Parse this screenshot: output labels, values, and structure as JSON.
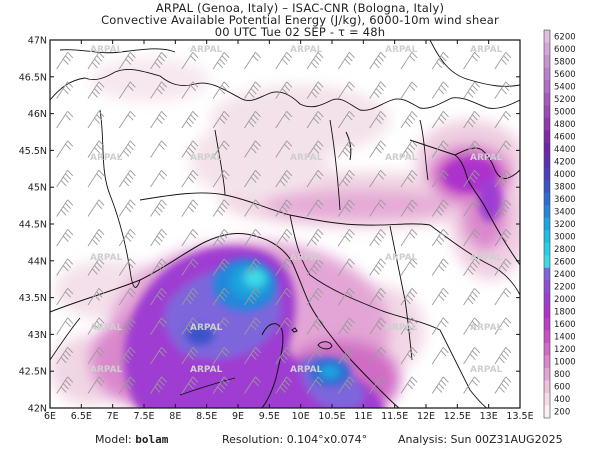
{
  "header": {
    "line1": "ARPAL (Genoa, Italy)  –  ISAC-CNR (Bologna, Italy)",
    "line2": "Convective Available Potential Energy (J/kg), 6000-10m wind shear",
    "line3": "00 UTC Tue 02 SEP  -  τ = 48h"
  },
  "axes": {
    "lat_labels": [
      "47N",
      "46.5N",
      "46N",
      "45.5N",
      "45N",
      "44.5N",
      "44N",
      "43.5N",
      "43N",
      "42.5N",
      "42N"
    ],
    "lon_labels": [
      "6E",
      "6.5E",
      "7E",
      "7.5E",
      "8E",
      "8.5E",
      "9E",
      "9.5E",
      "10E",
      "10.5E",
      "11E",
      "11.5E",
      "12E",
      "12.5E",
      "13E",
      "13.5E"
    ],
    "lat_range": [
      42,
      47
    ],
    "lon_range": [
      6,
      13.5
    ]
  },
  "watermark": "ARPAL",
  "colorbar": {
    "labels": [
      "6200",
      "6000",
      "5800",
      "5600",
      "5400",
      "5200",
      "5000",
      "4800",
      "4600",
      "4400",
      "4200",
      "4000",
      "3800",
      "3600",
      "3400",
      "3200",
      "3000",
      "2800",
      "2600",
      "2400",
      "2200",
      "2000",
      "1800",
      "1600",
      "1400",
      "1200",
      "1000",
      "800",
      "600",
      "400",
      "200"
    ],
    "colors": [
      "#e0bce0",
      "#d3a7d8",
      "#c794d1",
      "#bb80ca",
      "#b06fc3",
      "#a35cbc",
      "#9a4bb5",
      "#8e39ad",
      "#7e2aa6",
      "#6d26a7",
      "#5b2fb2",
      "#4a3fbe",
      "#3b52c9",
      "#2f6bd2",
      "#2488da",
      "#1ea4de",
      "#20bde0",
      "#2bcde2",
      "#3fd9e4",
      "#7d66dc",
      "#8e4fd6",
      "#9f3cd2",
      "#ad33cc",
      "#bb3ec7",
      "#c652c4",
      "#d06cc6",
      "#da88cc",
      "#e3a5d5",
      "#ecc2df",
      "#f3dbe9",
      "#fbeff5"
    ]
  },
  "footer": {
    "model_label": "Model:",
    "model_value": "bolam",
    "resolution_label": "Resolution:",
    "resolution_value": "0.104°x0.074°",
    "analysis_label": "Analysis:",
    "analysis_value": "Sun 00Z31AUG2025"
  }
}
